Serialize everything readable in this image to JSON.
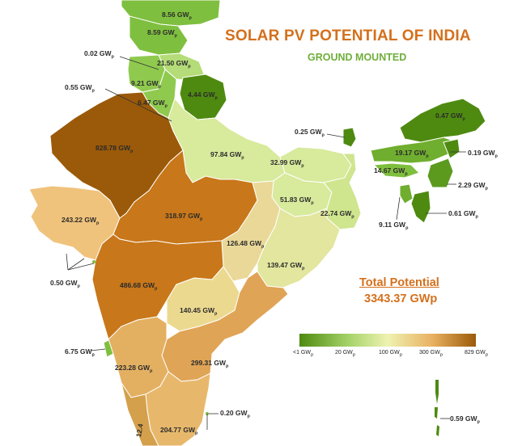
{
  "title": "SOLAR PV POTENTIAL OF INDIA",
  "subtitle": "GROUND MOUNTED",
  "total": {
    "label": "Total Potential",
    "value": "3343.37 GWp"
  },
  "legend": {
    "ticks": [
      "<1 GW",
      "20 GW",
      "100 GW",
      "300 GW",
      "829 GW"
    ],
    "colors": [
      "#4e8a10",
      "#a6d36a",
      "#eef2b0",
      "#e9b263",
      "#9b5a09"
    ]
  },
  "states": {
    "jk": "8.56 GW",
    "hp": "8.59 GW",
    "chandigarh": "0.02 GW",
    "uttarakhand": "21.50 GW",
    "punjab": "9.21 GW",
    "delhi": "0.55 GW",
    "haryana": "6.47 GW",
    "nepal_area": "4.44 GW",
    "rajasthan": "828.78 GW",
    "up": "97.84 GW",
    "sikkim": "0.25 GW",
    "arunachal": "0.47 GW",
    "assam": "19.17 GW",
    "nagaland": "0.19 GW",
    "meghalaya": "14.67 GW",
    "manipur": "2.29 GW",
    "bihar": "32.99 GW",
    "jharkhand": "51.83 GW",
    "wb": "22.74 GW",
    "mizoram": "0.61 GW",
    "tripura": "9.11 GW",
    "gujarat": "243.22 GW",
    "mp": "318.97 GW",
    "chhattisgarh": "126.48 GW",
    "odisha": "139.47 GW",
    "daman": "0.50 GW",
    "maharashtra": "486.68 GW",
    "telangana": "140.45 GW",
    "goa": "6.75 GW",
    "ap": "299.31 GW",
    "karnataka": "223.28 GW",
    "puducherry": "0.20 GW",
    "tn": "204.77 GW",
    "andaman": "0.59 GW",
    "kerala": "12.4"
  }
}
